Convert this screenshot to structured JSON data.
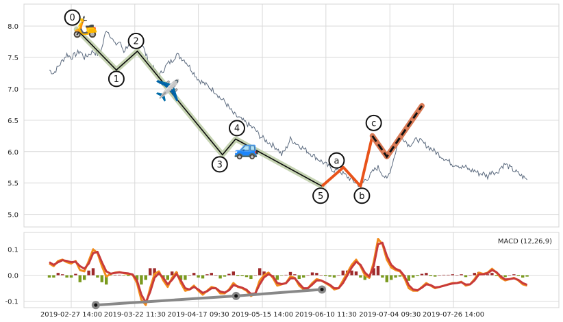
{
  "chart_data": [
    {
      "type": "line",
      "panel": "price",
      "ylim": [
        4.8,
        8.35
      ],
      "yticks": [
        "5.0",
        "5.5",
        "6.0",
        "6.5",
        "7.0",
        "7.5",
        "8.0"
      ],
      "grid": true,
      "series": [
        {
          "kind": "price",
          "color": "#5c6b7f",
          "points": [
            [
              0.0,
              7.3
            ],
            [
              1.0,
              7.25
            ],
            [
              2.0,
              7.35
            ],
            [
              3.0,
              7.45
            ],
            [
              4.0,
              7.55
            ],
            [
              5.0,
              7.5
            ],
            [
              6.0,
              7.55
            ],
            [
              7.0,
              7.6
            ],
            [
              8.0,
              7.5
            ],
            [
              9.0,
              7.55
            ],
            [
              10.0,
              7.6
            ],
            [
              11.0,
              7.55
            ],
            [
              12.0,
              7.65
            ],
            [
              13.0,
              7.95
            ],
            [
              14.0,
              7.85
            ],
            [
              15.0,
              7.7
            ],
            [
              16.0,
              7.75
            ],
            [
              17.0,
              7.6
            ],
            [
              18.0,
              7.7
            ],
            [
              19.0,
              7.8
            ],
            [
              20.0,
              7.7
            ],
            [
              21.0,
              7.75
            ],
            [
              22.0,
              7.55
            ],
            [
              23.0,
              7.4
            ],
            [
              24.0,
              7.3
            ],
            [
              25.0,
              7.2
            ],
            [
              26.0,
              7.3
            ],
            [
              27.0,
              7.4
            ],
            [
              28.0,
              7.45
            ],
            [
              29.0,
              7.55
            ],
            [
              30.0,
              7.5
            ],
            [
              31.0,
              7.45
            ],
            [
              32.0,
              7.35
            ],
            [
              33.0,
              7.25
            ],
            [
              34.0,
              7.15
            ],
            [
              35.0,
              7.1
            ],
            [
              36.0,
              7.05
            ],
            [
              37.0,
              7.0
            ],
            [
              38.0,
              6.95
            ],
            [
              39.0,
              6.85
            ],
            [
              40.0,
              6.8
            ],
            [
              41.0,
              6.7
            ],
            [
              42.0,
              6.6
            ],
            [
              43.0,
              6.55
            ],
            [
              44.0,
              6.5
            ],
            [
              45.0,
              6.45
            ],
            [
              46.0,
              6.4
            ],
            [
              47.0,
              6.35
            ],
            [
              48.0,
              6.25
            ],
            [
              49.0,
              6.2
            ],
            [
              50.0,
              6.15
            ],
            [
              51.0,
              6.1
            ],
            [
              52.0,
              6.05
            ],
            [
              53.0,
              5.95
            ],
            [
              54.0,
              6.05
            ],
            [
              55.0,
              6.2
            ],
            [
              56.0,
              6.15
            ],
            [
              57.0,
              6.1
            ],
            [
              58.0,
              6.05
            ],
            [
              59.0,
              6.0
            ],
            [
              60.0,
              5.95
            ],
            [
              61.0,
              5.9
            ],
            [
              62.0,
              5.85
            ],
            [
              63.0,
              5.8
            ],
            [
              64.0,
              5.75
            ],
            [
              65.0,
              5.7
            ],
            [
              66.0,
              5.7
            ],
            [
              67.0,
              5.65
            ],
            [
              68.0,
              5.6
            ],
            [
              69.0,
              5.55
            ],
            [
              70.0,
              5.5
            ],
            [
              71.0,
              5.45
            ],
            [
              72.0,
              5.55
            ],
            [
              73.0,
              5.6
            ],
            [
              74.0,
              5.7
            ],
            [
              75.0,
              5.75
            ],
            [
              76.0,
              5.65
            ],
            [
              77.0,
              5.55
            ],
            [
              78.0,
              5.75
            ],
            [
              79.0,
              6.0
            ],
            [
              80.0,
              6.25
            ],
            [
              81.0,
              6.2
            ],
            [
              82.0,
              6.1
            ],
            [
              83.0,
              6.15
            ],
            [
              84.0,
              6.2
            ],
            [
              85.0,
              6.15
            ],
            [
              86.0,
              6.1
            ],
            [
              87.0,
              6.05
            ],
            [
              88.0,
              6.0
            ],
            [
              89.0,
              5.95
            ],
            [
              90.0,
              5.9
            ],
            [
              91.0,
              5.85
            ],
            [
              92.0,
              5.8
            ],
            [
              93.0,
              5.8
            ],
            [
              94.0,
              5.75
            ],
            [
              95.0,
              5.75
            ],
            [
              96.0,
              5.7
            ],
            [
              97.0,
              5.7
            ],
            [
              98.0,
              5.65
            ],
            [
              99.0,
              5.65
            ],
            [
              100.0,
              5.6
            ],
            [
              101.0,
              5.7
            ],
            [
              102.0,
              5.65
            ],
            [
              103.0,
              5.75
            ],
            [
              104.0,
              5.8
            ],
            [
              105.0,
              5.75
            ],
            [
              106.0,
              5.7
            ],
            [
              107.0,
              5.65
            ],
            [
              108.0,
              5.6
            ],
            [
              109.0,
              5.55
            ]
          ]
        }
      ],
      "wave_count": {
        "impulse_points": [
          [
            6.2,
            7.95
          ],
          [
            15.3,
            7.3
          ],
          [
            20.1,
            7.6
          ],
          [
            39.5,
            5.95
          ],
          [
            42.5,
            6.2
          ],
          [
            62.2,
            5.45
          ]
        ],
        "impulse_labels": [
          "0",
          "1",
          "2",
          "3",
          "4",
          "5"
        ],
        "correction_points": [
          [
            62.2,
            5.45
          ],
          [
            67.1,
            5.75
          ],
          [
            71.0,
            5.45
          ],
          [
            73.7,
            6.25
          ]
        ],
        "correction_labels": [
          "a",
          "b",
          "c"
        ],
        "projection_points": [
          [
            73.7,
            6.25
          ],
          [
            77.0,
            5.92
          ],
          [
            85.0,
            6.73
          ]
        ],
        "colors": {
          "impulse": "#0a0a0a",
          "impulse_shadow": "#b8c9a0",
          "correction": "#e8531a",
          "projection": "#111111",
          "projection_shadow": "#d97a55"
        }
      },
      "icons": [
        {
          "name": "scooter",
          "glyph": "🛵",
          "x": 8.2,
          "y": 7.99
        },
        {
          "name": "airplane",
          "glyph": "✈️",
          "x": 27.0,
          "y": 6.97
        },
        {
          "name": "car",
          "glyph": "🚙",
          "x": 45.0,
          "y": 6.05
        }
      ]
    },
    {
      "type": "line",
      "panel": "macd",
      "title": "MACD (12,26,9)",
      "ylim": [
        -0.125,
        0.165
      ],
      "yticks": [
        "-0.1",
        "0.0",
        "0.1"
      ],
      "x_tick_labels": [
        "2019-02-27 14:00",
        "2019-03-22 11:30",
        "2019-04-17 09:30",
        "2019-05-15 14:00",
        "2019-06-10 11:30",
        "2019-07-04 09:30",
        "2019-07-26 14:00"
      ],
      "x_tick_positions": [
        5.0,
        19.5,
        34.0,
        48.6,
        63.1,
        77.7,
        92.2
      ],
      "grid": true,
      "series": [
        {
          "kind": "macd",
          "color": "#f28c1c",
          "values": [
            0.045,
            0.035,
            0.055,
            0.06,
            0.05,
            0.045,
            0.055,
            0.02,
            0.015,
            0.055,
            0.1,
            0.085,
            0.035,
            -0.005,
            0.005,
            0.01,
            0.012,
            0.008,
            0.005,
            0.002,
            -0.03,
            -0.095,
            -0.115,
            -0.05,
            0.005,
            0.015,
            -0.02,
            -0.045,
            -0.01,
            0.012,
            -0.03,
            -0.06,
            -0.055,
            -0.04,
            -0.06,
            -0.075,
            -0.06,
            -0.045,
            -0.05,
            -0.07,
            -0.07,
            -0.055,
            -0.03,
            -0.045,
            -0.05,
            -0.06,
            -0.08,
            -0.07,
            -0.02,
            0.0,
            0.01,
            -0.01,
            -0.04,
            -0.035,
            -0.03,
            -0.005,
            -0.01,
            -0.04,
            -0.055,
            -0.05,
            -0.03,
            -0.015,
            -0.02,
            -0.03,
            -0.04,
            -0.055,
            -0.05,
            -0.02,
            0.01,
            0.04,
            0.06,
            0.035,
            0.0,
            -0.01,
            0.05,
            0.14,
            0.12,
            0.06,
            0.03,
            0.02,
            0.015,
            -0.01,
            -0.05,
            -0.06,
            -0.06,
            -0.045,
            -0.03,
            -0.04,
            -0.05,
            -0.045,
            -0.04,
            -0.035,
            -0.03,
            -0.03,
            -0.025,
            -0.04,
            -0.035,
            -0.015,
            0.01,
            0.005,
            0.01,
            0.025,
            0.01,
            -0.01,
            -0.02,
            -0.015,
            -0.01,
            -0.02,
            -0.035,
            -0.04
          ]
        },
        {
          "kind": "signal",
          "color": "#c83a3a",
          "values": [
            0.05,
            0.04,
            0.05,
            0.058,
            0.055,
            0.05,
            0.052,
            0.035,
            0.025,
            0.045,
            0.085,
            0.09,
            0.05,
            0.015,
            0.006,
            0.009,
            0.011,
            0.009,
            0.007,
            0.003,
            -0.02,
            -0.075,
            -0.105,
            -0.065,
            -0.01,
            0.008,
            -0.01,
            -0.035,
            -0.018,
            0.005,
            -0.02,
            -0.05,
            -0.055,
            -0.045,
            -0.055,
            -0.068,
            -0.062,
            -0.05,
            -0.05,
            -0.063,
            -0.067,
            -0.058,
            -0.038,
            -0.043,
            -0.048,
            -0.056,
            -0.072,
            -0.07,
            -0.035,
            -0.008,
            0.004,
            -0.004,
            -0.03,
            -0.034,
            -0.031,
            -0.012,
            -0.012,
            -0.032,
            -0.05,
            -0.05,
            -0.036,
            -0.02,
            -0.02,
            -0.028,
            -0.037,
            -0.05,
            -0.05,
            -0.03,
            0.0,
            0.03,
            0.052,
            0.04,
            0.01,
            -0.005,
            0.035,
            0.12,
            0.125,
            0.075,
            0.04,
            0.025,
            0.018,
            -0.003,
            -0.038,
            -0.055,
            -0.058,
            -0.048,
            -0.035,
            -0.038,
            -0.047,
            -0.045,
            -0.041,
            -0.036,
            -0.032,
            -0.03,
            -0.027,
            -0.036,
            -0.035,
            -0.02,
            0.003,
            0.004,
            0.008,
            0.02,
            0.012,
            -0.005,
            -0.016,
            -0.015,
            -0.012,
            -0.018,
            -0.03,
            -0.037
          ]
        }
      ],
      "divergence_points": [
        [
          10.6,
          -0.115
        ],
        [
          42.6,
          -0.08
        ],
        [
          62.2,
          -0.055
        ]
      ],
      "divergence_color": "#888888",
      "histogram_colors": {
        "positive": "#9e2a2b",
        "negative": "#7a9a1e"
      }
    }
  ]
}
